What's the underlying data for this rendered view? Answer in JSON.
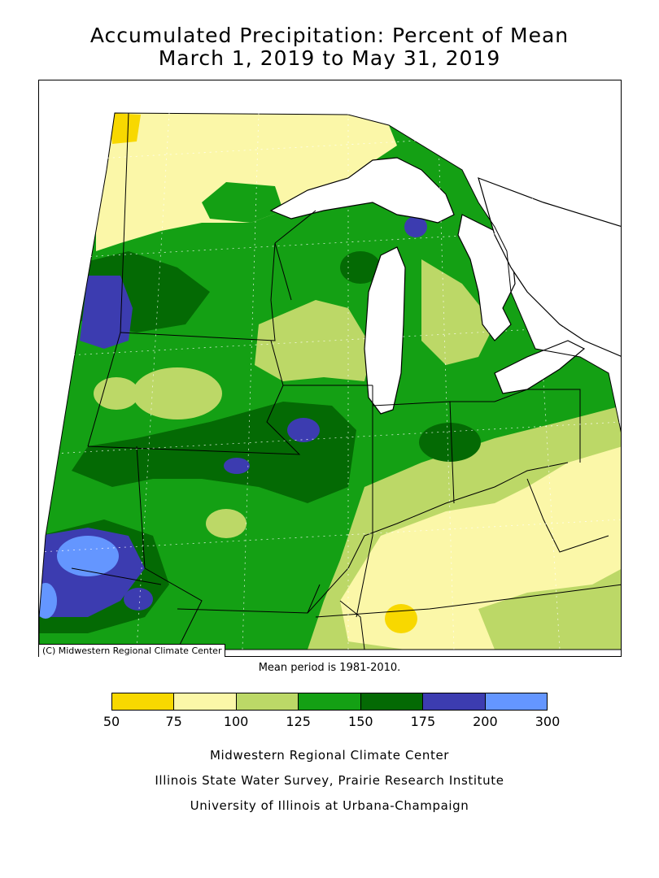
{
  "title": {
    "line1": "Accumulated Precipitation: Percent of Mean",
    "line2": "March 1, 2019 to May 31, 2019"
  },
  "map": {
    "copyright": "(C) Midwestern Regional Climate Center",
    "mean_period": "Mean period is 1981-2010.",
    "colors": {
      "c50_75": "#f8d800",
      "c75_100": "#fbf7a8",
      "c100_125": "#bcd867",
      "c125_150": "#14a014",
      "c150_175": "#046a04",
      "c175_200": "#3c3cb0",
      "c200_300": "#6496ff",
      "water": "#ffffff",
      "outline": "#000000"
    }
  },
  "legend": {
    "ticks": [
      "50",
      "75",
      "100",
      "125",
      "150",
      "175",
      "200",
      "300"
    ],
    "colors": [
      "#f8d800",
      "#fbf7a8",
      "#bcd867",
      "#14a014",
      "#046a04",
      "#3c3cb0",
      "#6496ff"
    ]
  },
  "credits": {
    "line1": "Midwestern Regional Climate Center",
    "line2": "Illinois State Water Survey, Prairie Research Institute",
    "line3": "University of Illinois at Urbana-Champaign"
  }
}
